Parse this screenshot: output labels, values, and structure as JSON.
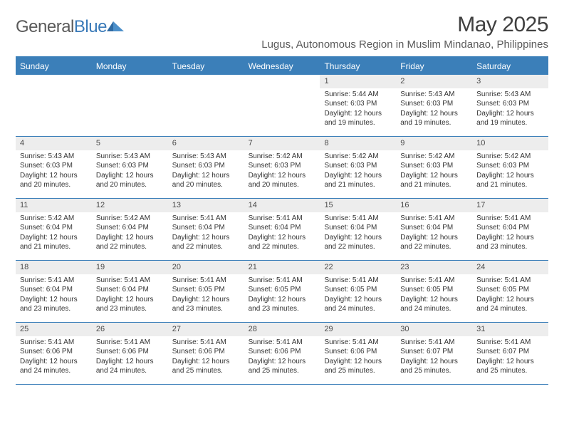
{
  "logo": {
    "text_gray": "General",
    "text_blue": "Blue"
  },
  "title": "May 2025",
  "location": "Lugus, Autonomous Region in Muslim Mindanao, Philippines",
  "colors": {
    "header_bar": "#3b7fb9",
    "day_num_bg": "#ededed",
    "text_dark": "#333333",
    "text_muted": "#5a5a5a"
  },
  "weekdays": [
    "Sunday",
    "Monday",
    "Tuesday",
    "Wednesday",
    "Thursday",
    "Friday",
    "Saturday"
  ],
  "weeks": [
    [
      {
        "empty": true
      },
      {
        "empty": true
      },
      {
        "empty": true
      },
      {
        "empty": true
      },
      {
        "num": "1",
        "sunrise": "Sunrise: 5:44 AM",
        "sunset": "Sunset: 6:03 PM",
        "day1": "Daylight: 12 hours",
        "day2": "and 19 minutes."
      },
      {
        "num": "2",
        "sunrise": "Sunrise: 5:43 AM",
        "sunset": "Sunset: 6:03 PM",
        "day1": "Daylight: 12 hours",
        "day2": "and 19 minutes."
      },
      {
        "num": "3",
        "sunrise": "Sunrise: 5:43 AM",
        "sunset": "Sunset: 6:03 PM",
        "day1": "Daylight: 12 hours",
        "day2": "and 19 minutes."
      }
    ],
    [
      {
        "num": "4",
        "sunrise": "Sunrise: 5:43 AM",
        "sunset": "Sunset: 6:03 PM",
        "day1": "Daylight: 12 hours",
        "day2": "and 20 minutes."
      },
      {
        "num": "5",
        "sunrise": "Sunrise: 5:43 AM",
        "sunset": "Sunset: 6:03 PM",
        "day1": "Daylight: 12 hours",
        "day2": "and 20 minutes."
      },
      {
        "num": "6",
        "sunrise": "Sunrise: 5:43 AM",
        "sunset": "Sunset: 6:03 PM",
        "day1": "Daylight: 12 hours",
        "day2": "and 20 minutes."
      },
      {
        "num": "7",
        "sunrise": "Sunrise: 5:42 AM",
        "sunset": "Sunset: 6:03 PM",
        "day1": "Daylight: 12 hours",
        "day2": "and 20 minutes."
      },
      {
        "num": "8",
        "sunrise": "Sunrise: 5:42 AM",
        "sunset": "Sunset: 6:03 PM",
        "day1": "Daylight: 12 hours",
        "day2": "and 21 minutes."
      },
      {
        "num": "9",
        "sunrise": "Sunrise: 5:42 AM",
        "sunset": "Sunset: 6:03 PM",
        "day1": "Daylight: 12 hours",
        "day2": "and 21 minutes."
      },
      {
        "num": "10",
        "sunrise": "Sunrise: 5:42 AM",
        "sunset": "Sunset: 6:03 PM",
        "day1": "Daylight: 12 hours",
        "day2": "and 21 minutes."
      }
    ],
    [
      {
        "num": "11",
        "sunrise": "Sunrise: 5:42 AM",
        "sunset": "Sunset: 6:04 PM",
        "day1": "Daylight: 12 hours",
        "day2": "and 21 minutes."
      },
      {
        "num": "12",
        "sunrise": "Sunrise: 5:42 AM",
        "sunset": "Sunset: 6:04 PM",
        "day1": "Daylight: 12 hours",
        "day2": "and 22 minutes."
      },
      {
        "num": "13",
        "sunrise": "Sunrise: 5:41 AM",
        "sunset": "Sunset: 6:04 PM",
        "day1": "Daylight: 12 hours",
        "day2": "and 22 minutes."
      },
      {
        "num": "14",
        "sunrise": "Sunrise: 5:41 AM",
        "sunset": "Sunset: 6:04 PM",
        "day1": "Daylight: 12 hours",
        "day2": "and 22 minutes."
      },
      {
        "num": "15",
        "sunrise": "Sunrise: 5:41 AM",
        "sunset": "Sunset: 6:04 PM",
        "day1": "Daylight: 12 hours",
        "day2": "and 22 minutes."
      },
      {
        "num": "16",
        "sunrise": "Sunrise: 5:41 AM",
        "sunset": "Sunset: 6:04 PM",
        "day1": "Daylight: 12 hours",
        "day2": "and 22 minutes."
      },
      {
        "num": "17",
        "sunrise": "Sunrise: 5:41 AM",
        "sunset": "Sunset: 6:04 PM",
        "day1": "Daylight: 12 hours",
        "day2": "and 23 minutes."
      }
    ],
    [
      {
        "num": "18",
        "sunrise": "Sunrise: 5:41 AM",
        "sunset": "Sunset: 6:04 PM",
        "day1": "Daylight: 12 hours",
        "day2": "and 23 minutes."
      },
      {
        "num": "19",
        "sunrise": "Sunrise: 5:41 AM",
        "sunset": "Sunset: 6:04 PM",
        "day1": "Daylight: 12 hours",
        "day2": "and 23 minutes."
      },
      {
        "num": "20",
        "sunrise": "Sunrise: 5:41 AM",
        "sunset": "Sunset: 6:05 PM",
        "day1": "Daylight: 12 hours",
        "day2": "and 23 minutes."
      },
      {
        "num": "21",
        "sunrise": "Sunrise: 5:41 AM",
        "sunset": "Sunset: 6:05 PM",
        "day1": "Daylight: 12 hours",
        "day2": "and 23 minutes."
      },
      {
        "num": "22",
        "sunrise": "Sunrise: 5:41 AM",
        "sunset": "Sunset: 6:05 PM",
        "day1": "Daylight: 12 hours",
        "day2": "and 24 minutes."
      },
      {
        "num": "23",
        "sunrise": "Sunrise: 5:41 AM",
        "sunset": "Sunset: 6:05 PM",
        "day1": "Daylight: 12 hours",
        "day2": "and 24 minutes."
      },
      {
        "num": "24",
        "sunrise": "Sunrise: 5:41 AM",
        "sunset": "Sunset: 6:05 PM",
        "day1": "Daylight: 12 hours",
        "day2": "and 24 minutes."
      }
    ],
    [
      {
        "num": "25",
        "sunrise": "Sunrise: 5:41 AM",
        "sunset": "Sunset: 6:06 PM",
        "day1": "Daylight: 12 hours",
        "day2": "and 24 minutes."
      },
      {
        "num": "26",
        "sunrise": "Sunrise: 5:41 AM",
        "sunset": "Sunset: 6:06 PM",
        "day1": "Daylight: 12 hours",
        "day2": "and 24 minutes."
      },
      {
        "num": "27",
        "sunrise": "Sunrise: 5:41 AM",
        "sunset": "Sunset: 6:06 PM",
        "day1": "Daylight: 12 hours",
        "day2": "and 25 minutes."
      },
      {
        "num": "28",
        "sunrise": "Sunrise: 5:41 AM",
        "sunset": "Sunset: 6:06 PM",
        "day1": "Daylight: 12 hours",
        "day2": "and 25 minutes."
      },
      {
        "num": "29",
        "sunrise": "Sunrise: 5:41 AM",
        "sunset": "Sunset: 6:06 PM",
        "day1": "Daylight: 12 hours",
        "day2": "and 25 minutes."
      },
      {
        "num": "30",
        "sunrise": "Sunrise: 5:41 AM",
        "sunset": "Sunset: 6:07 PM",
        "day1": "Daylight: 12 hours",
        "day2": "and 25 minutes."
      },
      {
        "num": "31",
        "sunrise": "Sunrise: 5:41 AM",
        "sunset": "Sunset: 6:07 PM",
        "day1": "Daylight: 12 hours",
        "day2": "and 25 minutes."
      }
    ]
  ]
}
